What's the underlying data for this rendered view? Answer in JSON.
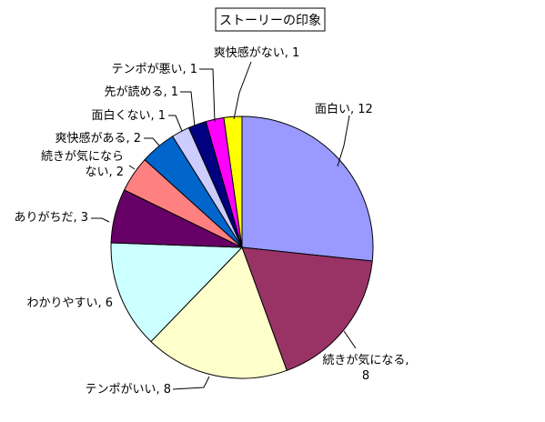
{
  "chart_data": {
    "type": "pie",
    "title": "ストーリーの印象",
    "start_angle_deg": 0,
    "direction": "clockwise",
    "slices": [
      {
        "label": "面白い",
        "value": 12,
        "color": "#9999FF",
        "label_lines": [
          "面白い, 12"
        ]
      },
      {
        "label": "続きが気になる",
        "value": 8,
        "color": "#993366",
        "label_lines": [
          "続きが気になる,",
          "8"
        ]
      },
      {
        "label": "テンポがいい",
        "value": 8,
        "color": "#FFFFCC",
        "label_lines": [
          "テンポがいい, 8"
        ]
      },
      {
        "label": "わかりやすい",
        "value": 6,
        "color": "#CCFFFF",
        "label_lines": [
          "わかりやすい, 6"
        ]
      },
      {
        "label": "ありがちだ",
        "value": 3,
        "color": "#660066",
        "label_lines": [
          "ありがちだ, 3"
        ]
      },
      {
        "label": "続きが気にならない",
        "value": 2,
        "color": "#FF8080",
        "label_lines": [
          "続きが気になら",
          "ない, 2"
        ]
      },
      {
        "label": "爽快感がある",
        "value": 2,
        "color": "#0066CC",
        "label_lines": [
          "爽快感がある, 2"
        ]
      },
      {
        "label": "面白くない",
        "value": 1,
        "color": "#CCCCFF",
        "label_lines": [
          "面白くない, 1"
        ]
      },
      {
        "label": "先が読める",
        "value": 1,
        "color": "#000080",
        "label_lines": [
          "先が読める, 1"
        ]
      },
      {
        "label": "テンポが悪い",
        "value": 1,
        "color": "#FF00FF",
        "label_lines": [
          "テンポが悪い, 1"
        ]
      },
      {
        "label": "爽快感がない",
        "value": 1,
        "color": "#FFFF00",
        "label_lines": [
          "爽快感がない, 1"
        ]
      }
    ]
  }
}
